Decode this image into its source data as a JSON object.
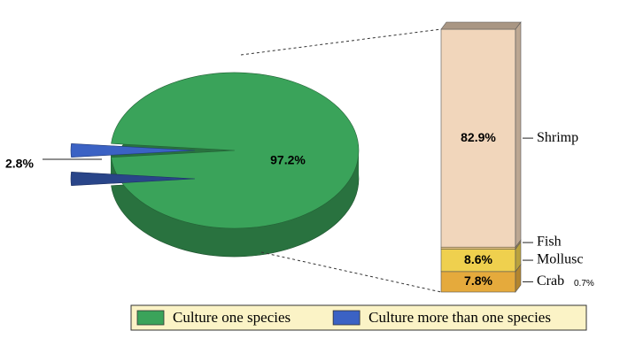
{
  "chart_data": [
    {
      "type": "pie",
      "categories": [
        "Culture one species",
        "Culture more than one species"
      ],
      "values": [
        97.2,
        2.8
      ],
      "value_labels": [
        "97.2%",
        "2.8%"
      ],
      "colors": [
        "#3aa35a",
        "#3b62c4"
      ],
      "legend": "bottom"
    },
    {
      "type": "stacked-bar",
      "series": [
        {
          "name": "Crab",
          "color": "#e5aa3c",
          "values": [
            7.8
          ],
          "value_labels": [
            "7.8%"
          ]
        },
        {
          "name": "Mollusc",
          "color": "#efd04e",
          "values": [
            8.6
          ],
          "value_labels": [
            "8.6%"
          ]
        },
        {
          "name": "Fish",
          "color": "#e9c47a",
          "values": [
            0.7
          ],
          "value_labels": [
            "0.7%"
          ]
        },
        {
          "name": "Shrimp",
          "color": "#f1d6bb",
          "values": [
            82.9
          ],
          "value_labels": [
            "82.9%"
          ]
        }
      ]
    }
  ]
}
